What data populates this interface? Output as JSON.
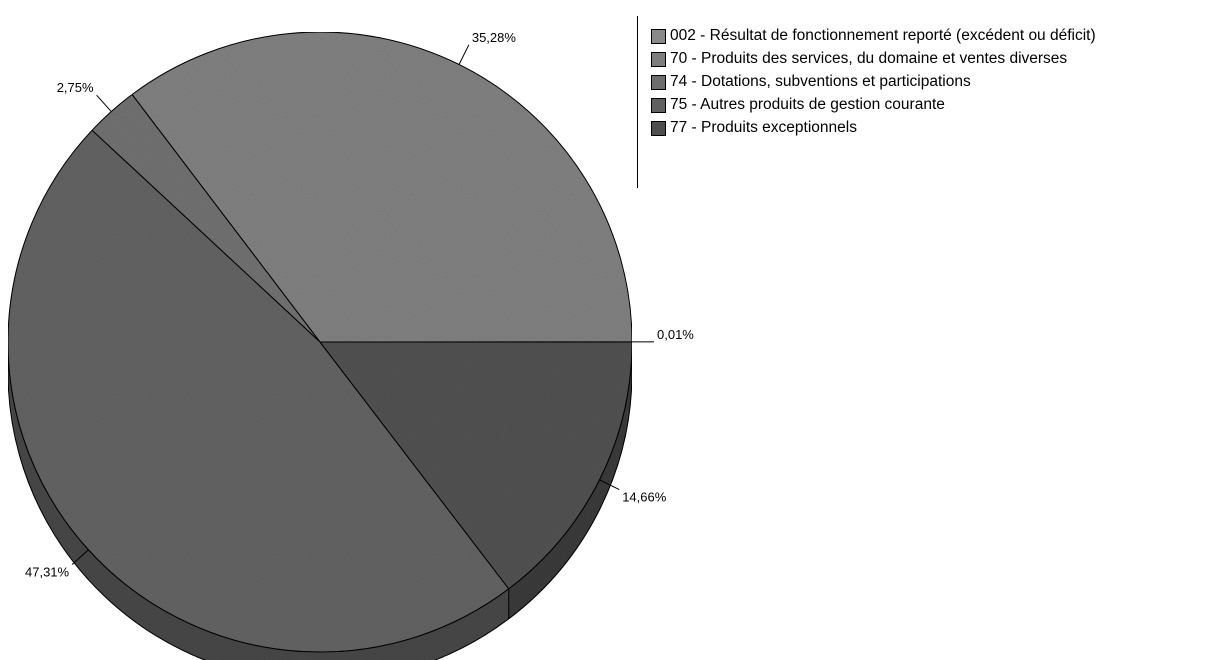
{
  "chart_data": {
    "type": "pie",
    "style": "3d",
    "slices": [
      {
        "label": "002 - Résultat de fonctionnement reporté (excédent ou déficit)",
        "value_label": "0,01%",
        "value": 0.01,
        "color": "#9a9a9a"
      },
      {
        "label": "70 - Produits des services, du domaine et ventes diverses",
        "value_label": "35,28%",
        "value": 35.28,
        "color": "#8c8c8c"
      },
      {
        "label": "74 - Dotations, subventions et participations",
        "value_label": "2,75%",
        "value": 2.75,
        "color": "#7b7b7b"
      },
      {
        "label": "75 - Autres produits de gestion courante",
        "value_label": "47,31%",
        "value": 47.31,
        "color": "#6c6c6c"
      },
      {
        "label": "77 - Produits exceptionnels",
        "value_label": "14,66%",
        "value": 14.66,
        "color": "#595959"
      }
    ],
    "legend_position": "top-right"
  }
}
